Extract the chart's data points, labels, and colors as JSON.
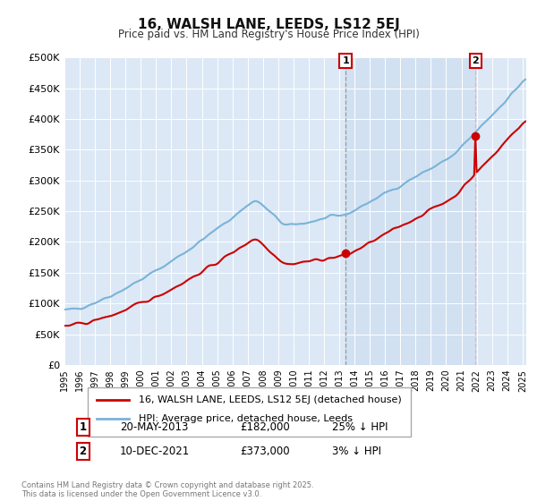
{
  "title": "16, WALSH LANE, LEEDS, LS12 5EJ",
  "subtitle": "Price paid vs. HM Land Registry's House Price Index (HPI)",
  "legend_label_red": "16, WALSH LANE, LEEDS, LS12 5EJ (detached house)",
  "legend_label_blue": "HPI: Average price, detached house, Leeds",
  "sale1_date": "20-MAY-2013",
  "sale1_price": 182000,
  "sale1_label": "1",
  "sale1_hpi_diff": "25% ↓ HPI",
  "sale2_date": "10-DEC-2021",
  "sale2_price": 373000,
  "sale2_label": "2",
  "sale2_hpi_diff": "3% ↓ HPI",
  "footer": "Contains HM Land Registry data © Crown copyright and database right 2025.\nThis data is licensed under the Open Government Licence v3.0.",
  "ylabel_ticks": [
    "£0",
    "£50K",
    "£100K",
    "£150K",
    "£200K",
    "£250K",
    "£300K",
    "£350K",
    "£400K",
    "£450K",
    "£500K"
  ],
  "ylim": [
    0,
    500000
  ],
  "color_red": "#cc0000",
  "color_blue": "#7ab3d8",
  "color_bg": "#dce8f5",
  "grid_color": "#ffffff"
}
